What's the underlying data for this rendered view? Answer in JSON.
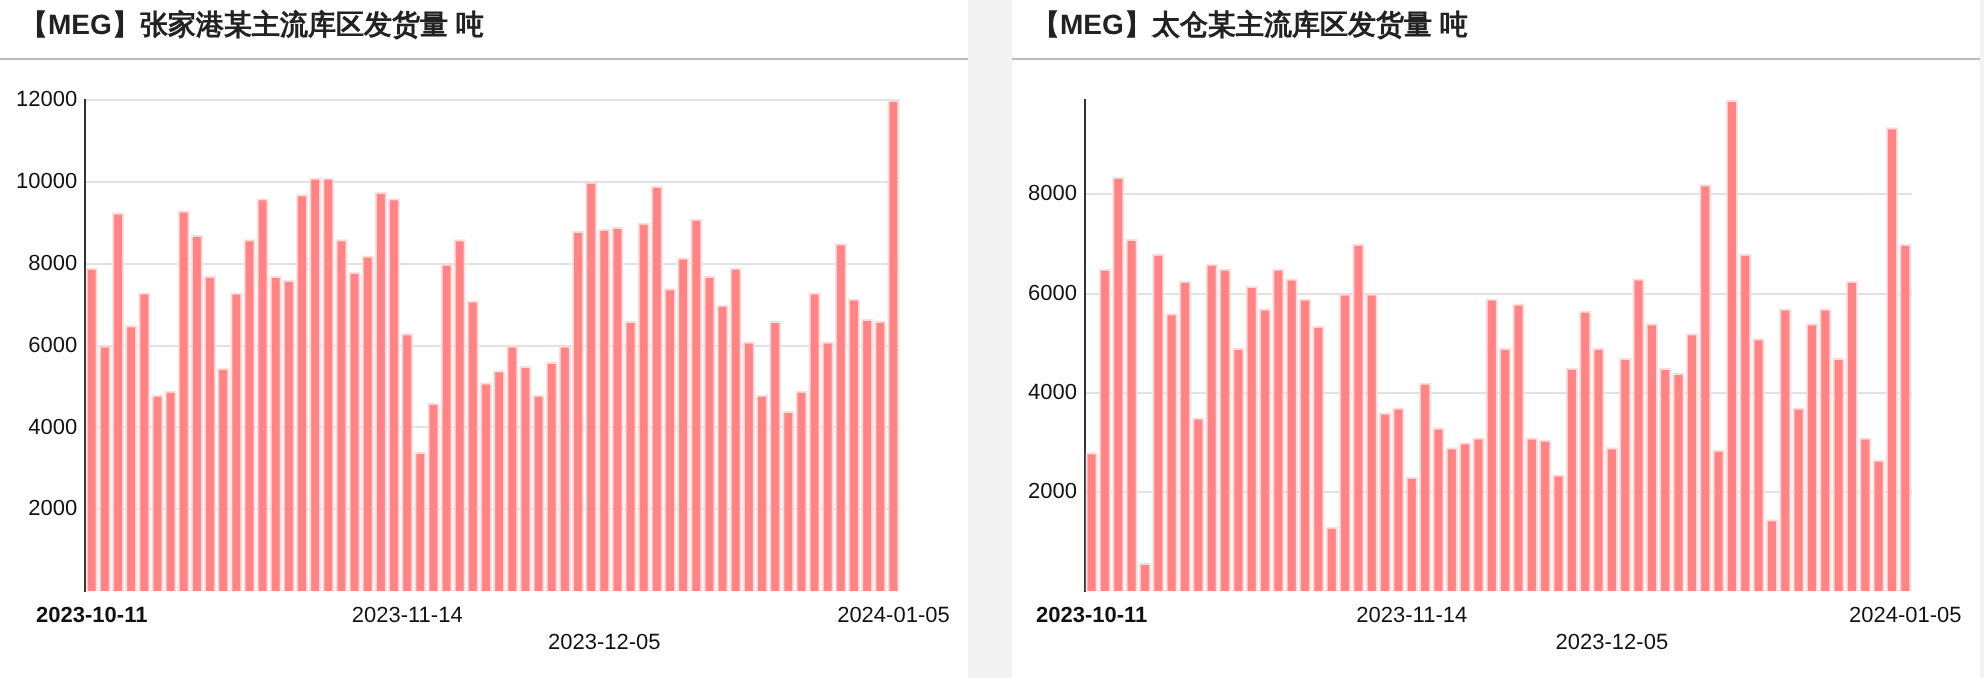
{
  "chart_data": [
    {
      "type": "bar",
      "title": "【MEG】张家港某主流库区发货量 吨",
      "categories": [
        "2023-10-11",
        null,
        null,
        null,
        null,
        null,
        null,
        null,
        null,
        null,
        null,
        null,
        null,
        null,
        null,
        null,
        null,
        null,
        null,
        null,
        null,
        null,
        null,
        null,
        "2023-11-14",
        null,
        null,
        null,
        null,
        null,
        null,
        null,
        null,
        null,
        null,
        null,
        null,
        null,
        null,
        "2023-12-05",
        null,
        null,
        null,
        null,
        null,
        null,
        null,
        null,
        null,
        null,
        null,
        null,
        null,
        null,
        null,
        null,
        null,
        null,
        null,
        null,
        null,
        "2024-01-05"
      ],
      "values": [
        7900,
        6000,
        9250,
        6500,
        7300,
        4800,
        4900,
        9300,
        8700,
        7700,
        5450,
        7300,
        8600,
        9600,
        7700,
        7600,
        9700,
        10100,
        10100,
        8600,
        7800,
        8200,
        9750,
        9600,
        6300,
        3400,
        4600,
        8000,
        8600,
        7100,
        5100,
        5400,
        6000,
        5500,
        4800,
        5600,
        6000,
        8800,
        10000,
        8850,
        8900,
        6600,
        9000,
        9900,
        7400,
        8150,
        9100,
        7700,
        7000,
        7900,
        6100,
        4800,
        6600,
        4400,
        4900,
        7300,
        6100,
        8500,
        7150,
        6650,
        6600,
        12000
      ],
      "color": "#ff8486",
      "ylim": [
        0,
        12000
      ],
      "yticks": [
        2000,
        4000,
        6000,
        8000,
        10000,
        12000
      ],
      "grid": true
    },
    {
      "type": "bar",
      "title": "【MEG】太仓某主流库区发货量 吨",
      "categories": [
        "2023-10-11",
        null,
        null,
        null,
        null,
        null,
        null,
        null,
        null,
        null,
        null,
        null,
        null,
        null,
        null,
        null,
        null,
        null,
        null,
        null,
        null,
        null,
        null,
        null,
        "2023-11-14",
        null,
        null,
        null,
        null,
        null,
        null,
        null,
        null,
        null,
        null,
        null,
        null,
        null,
        null,
        "2023-12-05",
        null,
        null,
        null,
        null,
        null,
        null,
        null,
        null,
        null,
        null,
        null,
        null,
        null,
        null,
        null,
        null,
        null,
        null,
        null,
        null,
        null,
        "2024-01-05"
      ],
      "values": [
        2800,
        6500,
        8350,
        7100,
        570,
        6800,
        5600,
        6250,
        3500,
        6600,
        6500,
        4900,
        6150,
        5700,
        6500,
        6300,
        5900,
        5350,
        1300,
        6000,
        7000,
        6000,
        3600,
        3700,
        2300,
        4200,
        3300,
        2900,
        3000,
        3100,
        5900,
        4900,
        5800,
        3100,
        3050,
        2350,
        4500,
        5650,
        4900,
        2900,
        4700,
        6300,
        5400,
        4500,
        4400,
        5200,
        8200,
        2850,
        9900,
        6800,
        5100,
        1450,
        5700,
        3700,
        5400,
        5700,
        4700,
        6250,
        3100,
        2650,
        9350,
        7000
      ],
      "color": "#ff8486",
      "ylim": [
        0,
        9900
      ],
      "yticks": [
        2000,
        4000,
        6000,
        8000
      ],
      "grid": true
    }
  ]
}
